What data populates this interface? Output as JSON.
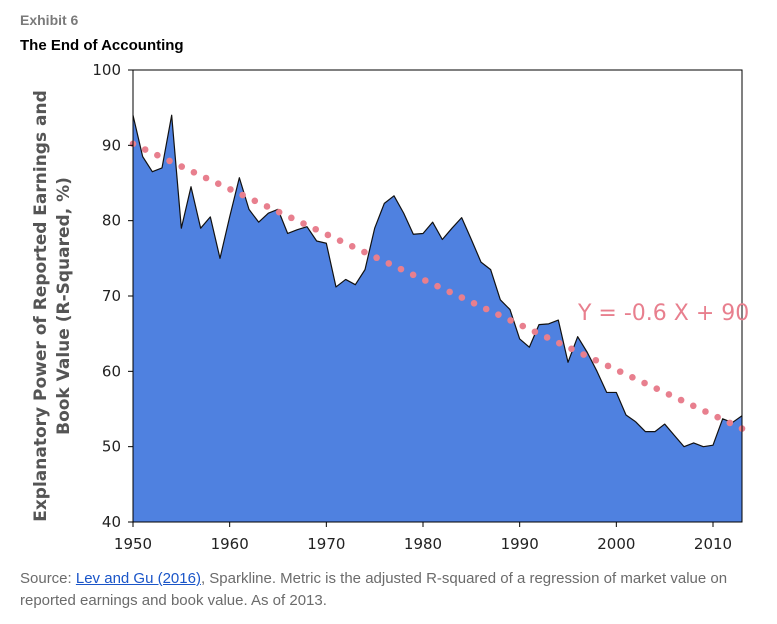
{
  "header": {
    "exhibit": "Exhibit 6",
    "title": "The End of Accounting"
  },
  "chart_data": {
    "type": "area",
    "title": "The End of Accounting",
    "xlabel": "",
    "ylabel_lines": [
      "Explanatory Power of Reported Earnings and",
      "Book Value (R-Squared, %)"
    ],
    "xlim": [
      1950,
      2013
    ],
    "ylim": [
      40,
      100
    ],
    "xticks": [
      1950,
      1960,
      1970,
      1980,
      1990,
      2000,
      2010
    ],
    "yticks": [
      40,
      50,
      60,
      70,
      80,
      90,
      100
    ],
    "series": [
      {
        "name": "R-Squared",
        "x": [
          1950,
          1951,
          1952,
          1953,
          1954,
          1955,
          1956,
          1957,
          1958,
          1959,
          1960,
          1961,
          1962,
          1963,
          1964,
          1965,
          1966,
          1967,
          1968,
          1969,
          1970,
          1971,
          1972,
          1973,
          1974,
          1975,
          1976,
          1977,
          1978,
          1979,
          1980,
          1981,
          1982,
          1983,
          1984,
          1985,
          1986,
          1987,
          1988,
          1989,
          1990,
          1991,
          1992,
          1993,
          1994,
          1995,
          1996,
          1997,
          1998,
          1999,
          2000,
          2001,
          2002,
          2003,
          2004,
          2005,
          2006,
          2007,
          2008,
          2009,
          2010,
          2011,
          2012,
          2013
        ],
        "y": [
          94,
          88.5,
          86.5,
          87,
          94,
          79,
          84.5,
          79,
          80.5,
          75,
          80.5,
          85.7,
          81.5,
          79.8,
          81,
          81.5,
          78.3,
          78.8,
          79.2,
          77.3,
          77,
          71.2,
          72.2,
          71.5,
          73.5,
          79,
          82.3,
          83.3,
          81,
          78.2,
          78.3,
          79.8,
          77.5,
          79,
          80.4,
          77.5,
          74.5,
          73.5,
          69.5,
          68.2,
          64.3,
          63.2,
          66.2,
          66.3,
          66.8,
          61.2,
          64.6,
          62.5,
          60,
          57.2,
          57.2,
          54.2,
          53.3,
          52,
          52,
          53,
          51.5,
          50,
          50.5,
          50,
          50.2,
          53.7,
          53.2,
          54.1
        ],
        "color": "#4f81e0",
        "edge_color": "#111111"
      }
    ],
    "trendline": {
      "slope": -0.6,
      "intercept": 90,
      "y_start": 90.2,
      "y_end": 52.4,
      "color": "#e87f8e",
      "equation": "Y = -0.6 X + 90"
    }
  },
  "source": {
    "prefix": "Source: ",
    "link_text": "Lev and Gu (2016)",
    "suffix": ", Sparkline. Metric is the adjusted R-squared of a regression of market value on reported earnings and book value. As of 2013."
  }
}
